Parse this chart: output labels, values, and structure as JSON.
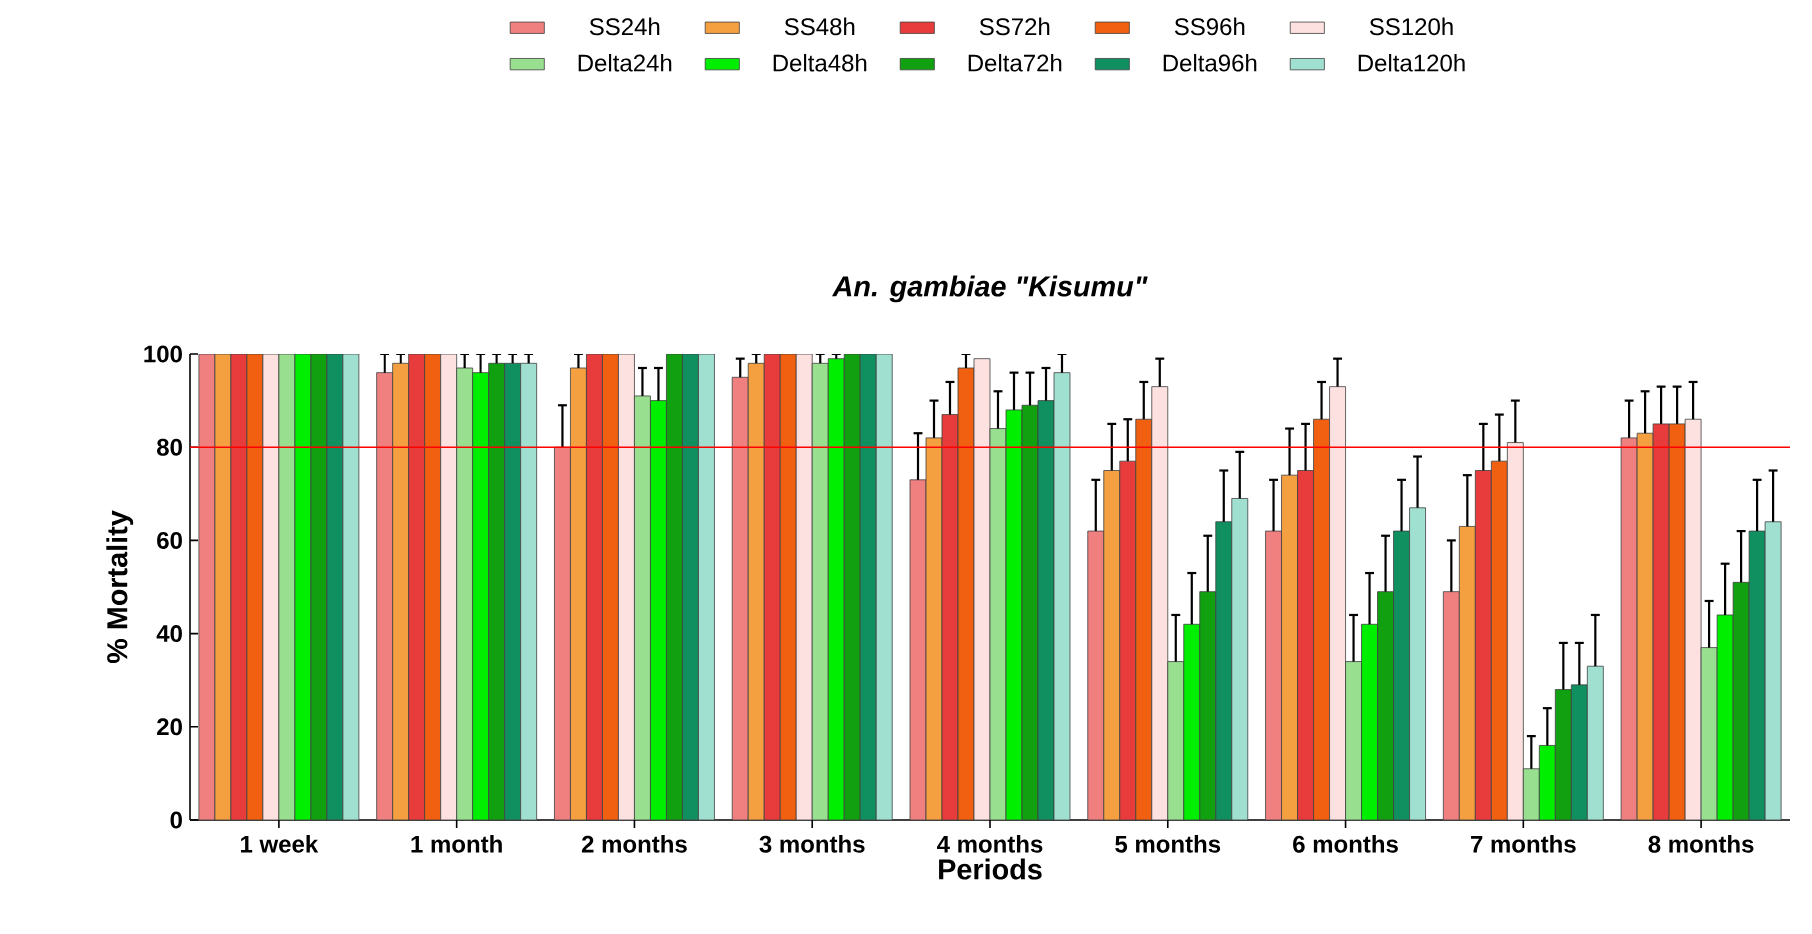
{
  "chart_data": {
    "type": "bar",
    "title": "An. gambiae \"Kisumu\"",
    "xlabel": "Periods",
    "ylabel": "% Mortality",
    "categories": [
      "1 week",
      "1 month",
      "2 months",
      "3 months",
      "4 months",
      "5 months",
      "6 months",
      "7 months",
      "8 months"
    ],
    "ylim": [
      0,
      100
    ],
    "yticks": [
      0,
      20,
      40,
      60,
      80,
      100
    ],
    "legend": "top",
    "ref_lines": [
      {
        "axis": "y",
        "value": 80,
        "color": "#ff0000"
      }
    ],
    "series": [
      {
        "name": "SS24h",
        "color": "#f08080",
        "values": [
          100,
          96,
          80,
          95,
          73,
          62,
          62,
          49,
          82
        ],
        "errors": [
          null,
          [
            96,
            100
          ],
          [
            80,
            89
          ],
          [
            95,
            99
          ],
          [
            73,
            83
          ],
          [
            62,
            73
          ],
          [
            62,
            73
          ],
          [
            49,
            60
          ],
          [
            82,
            90
          ]
        ]
      },
      {
        "name": "SS48h",
        "color": "#f5a040",
        "values": [
          100,
          98,
          97,
          98,
          82,
          75,
          74,
          63,
          83
        ],
        "errors": [
          null,
          [
            98,
            100
          ],
          [
            97,
            100
          ],
          [
            98,
            100
          ],
          [
            82,
            90
          ],
          [
            75,
            85
          ],
          [
            74,
            84
          ],
          [
            63,
            74
          ],
          [
            83,
            92
          ]
        ]
      },
      {
        "name": "SS72h",
        "color": "#e83c3c",
        "values": [
          100,
          100,
          100,
          100,
          87,
          77,
          75,
          75,
          85
        ],
        "errors": [
          null,
          null,
          null,
          null,
          [
            87,
            94
          ],
          [
            77,
            86
          ],
          [
            75,
            85
          ],
          [
            75,
            85
          ],
          [
            85,
            93
          ]
        ]
      },
      {
        "name": "SS96h",
        "color": "#f06010",
        "values": [
          100,
          100,
          100,
          100,
          97,
          86,
          86,
          77,
          85
        ],
        "errors": [
          null,
          null,
          null,
          null,
          [
            97,
            100
          ],
          [
            86,
            94
          ],
          [
            86,
            94
          ],
          [
            77,
            87
          ],
          [
            85,
            93
          ]
        ]
      },
      {
        "name": "SS120h",
        "color": "#fde0e0",
        "values": [
          100,
          100,
          100,
          100,
          99,
          93,
          93,
          81,
          86
        ],
        "errors": [
          null,
          null,
          null,
          null,
          null,
          [
            93,
            99
          ],
          [
            93,
            99
          ],
          [
            81,
            90
          ],
          [
            86,
            94
          ]
        ]
      },
      {
        "name": "Delta24h",
        "color": "#98e090",
        "values": [
          100,
          97,
          91,
          98,
          84,
          34,
          34,
          11,
          37
        ],
        "errors": [
          null,
          [
            97,
            100
          ],
          [
            91,
            97
          ],
          [
            98,
            100
          ],
          [
            84,
            92
          ],
          [
            34,
            44
          ],
          [
            34,
            44
          ],
          [
            11,
            18
          ],
          [
            37,
            47
          ]
        ]
      },
      {
        "name": "Delta48h",
        "color": "#00ee00",
        "values": [
          100,
          96,
          90,
          99,
          88,
          42,
          42,
          16,
          44
        ],
        "errors": [
          null,
          [
            96,
            100
          ],
          [
            90,
            97
          ],
          [
            99,
            100
          ],
          [
            88,
            96
          ],
          [
            42,
            53
          ],
          [
            42,
            53
          ],
          [
            16,
            24
          ],
          [
            44,
            55
          ]
        ]
      },
      {
        "name": "Delta72h",
        "color": "#10a010",
        "values": [
          100,
          98,
          100,
          100,
          89,
          49,
          49,
          28,
          51
        ],
        "errors": [
          null,
          [
            98,
            100
          ],
          null,
          null,
          [
            89,
            96
          ],
          [
            49,
            61
          ],
          [
            49,
            61
          ],
          [
            28,
            38
          ],
          [
            51,
            62
          ]
        ]
      },
      {
        "name": "Delta96h",
        "color": "#109060",
        "values": [
          100,
          98,
          100,
          100,
          90,
          64,
          62,
          29,
          62
        ],
        "errors": [
          null,
          [
            98,
            100
          ],
          null,
          null,
          [
            90,
            97
          ],
          [
            64,
            75
          ],
          [
            62,
            73
          ],
          [
            29,
            38
          ],
          [
            62,
            73
          ]
        ]
      },
      {
        "name": "Delta120h",
        "color": "#a0e0d0",
        "values": [
          100,
          98,
          100,
          100,
          96,
          69,
          67,
          33,
          64
        ],
        "errors": [
          null,
          [
            98,
            100
          ],
          null,
          null,
          [
            96,
            100
          ],
          [
            69,
            79
          ],
          [
            67,
            78
          ],
          [
            33,
            44
          ],
          [
            64,
            75
          ]
        ]
      }
    ]
  }
}
